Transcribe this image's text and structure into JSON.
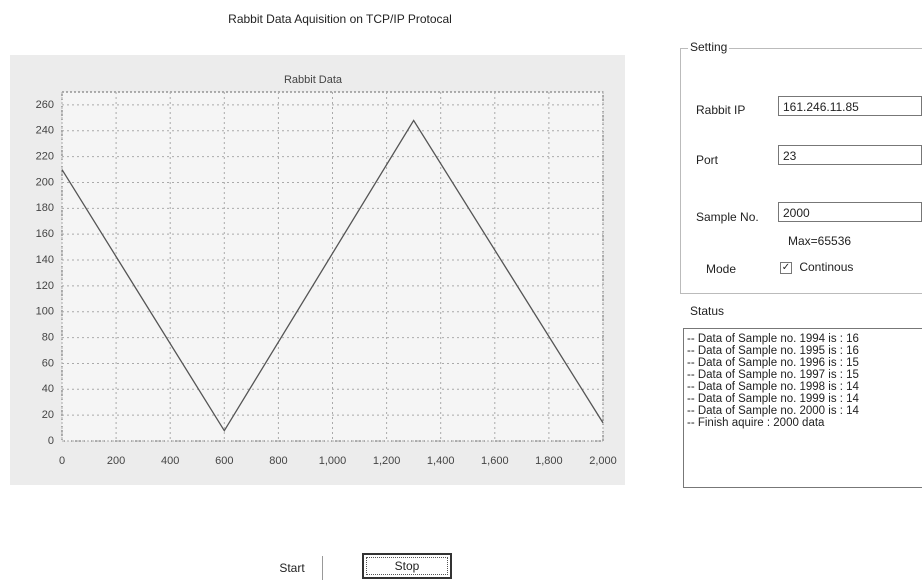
{
  "window_title": "Rabbit Data Aquisition on TCP/IP Protocal",
  "chart_data": {
    "type": "line",
    "title": "Rabbit Data",
    "x": [
      0,
      600,
      1300,
      2000
    ],
    "values": [
      210,
      8,
      248,
      14
    ],
    "color": "#555555",
    "xlim": [
      0,
      2000
    ],
    "ylim": [
      0,
      270
    ],
    "xticks": [
      0,
      200,
      400,
      600,
      800,
      {
        "value": 1000,
        "label": "1,000"
      },
      {
        "value": 1200,
        "label": "1,200"
      },
      {
        "value": 1400,
        "label": "1,400"
      },
      {
        "value": 1600,
        "label": "1,600"
      },
      {
        "value": 1800,
        "label": "1,800"
      },
      {
        "value": 2000,
        "label": "2,000"
      }
    ],
    "yticks": [
      0,
      20,
      40,
      60,
      80,
      100,
      120,
      140,
      160,
      180,
      200,
      220,
      240,
      260
    ],
    "grid": true
  },
  "setting": {
    "title": "Setting",
    "rabbit_ip_label": "Rabbit IP",
    "rabbit_ip": "161.246.11.85",
    "port_label": "Port",
    "port": "23",
    "sample_label": "Sample No.",
    "sample": "2000",
    "sample_note": "Max=65536",
    "mode_label": "Mode",
    "mode_option": "Continous"
  },
  "status": {
    "title": "Status",
    "lines": [
      "-- Data of Sample no. 1994 is : 16",
      "-- Data of Sample no. 1995 is : 16",
      "-- Data of Sample no. 1996 is : 15",
      "-- Data of Sample no. 1997 is : 15",
      "-- Data of Sample no. 1998 is : 14",
      "-- Data of Sample no. 1999 is : 14",
      "-- Data of Sample no. 2000 is : 14",
      "-- Finish aquire : 2000 data"
    ]
  },
  "buttons": {
    "start": "Start",
    "stop": "Stop"
  }
}
